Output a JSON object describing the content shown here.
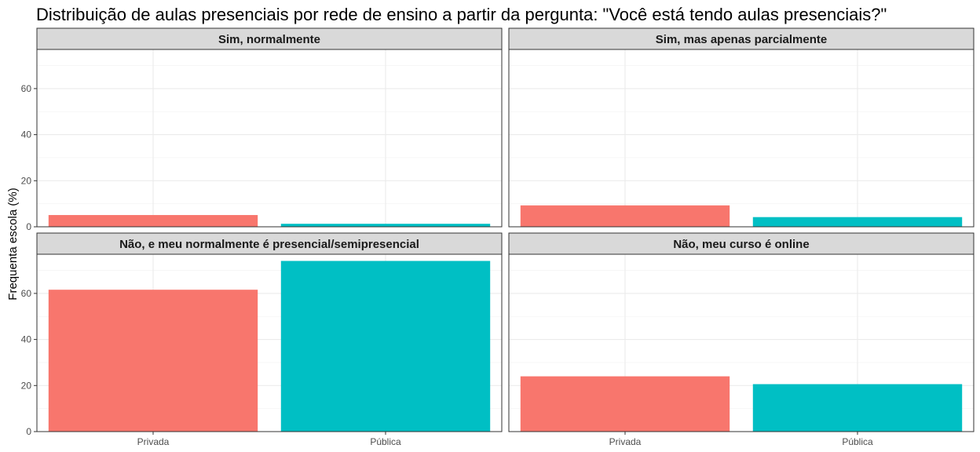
{
  "chart_data": {
    "type": "bar",
    "title": "Distribuição de aulas presenciais por rede de ensino a partir da pergunta: \"Você está tendo aulas presenciais?\"",
    "xlabel": "",
    "ylabel": "Frequenta escola (%)",
    "categories": [
      "Privada",
      "Pública"
    ],
    "colors": [
      "#F8766D",
      "#00BFC4"
    ],
    "ylim": [
      0,
      77
    ],
    "yticks": [
      0,
      20,
      40,
      60
    ],
    "grid": true,
    "legend": "none",
    "facets": [
      {
        "label": "Sim, normalmente",
        "values": [
          5.1,
          1.3
        ]
      },
      {
        "label": "Sim, mas apenas parcialmente",
        "values": [
          9.3,
          4.2
        ]
      },
      {
        "label": "Não, e meu normalmente é presencial/semipresencial",
        "values": [
          61.6,
          74.1
        ]
      },
      {
        "label": "Não, meu curso é online",
        "values": [
          24.0,
          20.6
        ]
      }
    ]
  }
}
